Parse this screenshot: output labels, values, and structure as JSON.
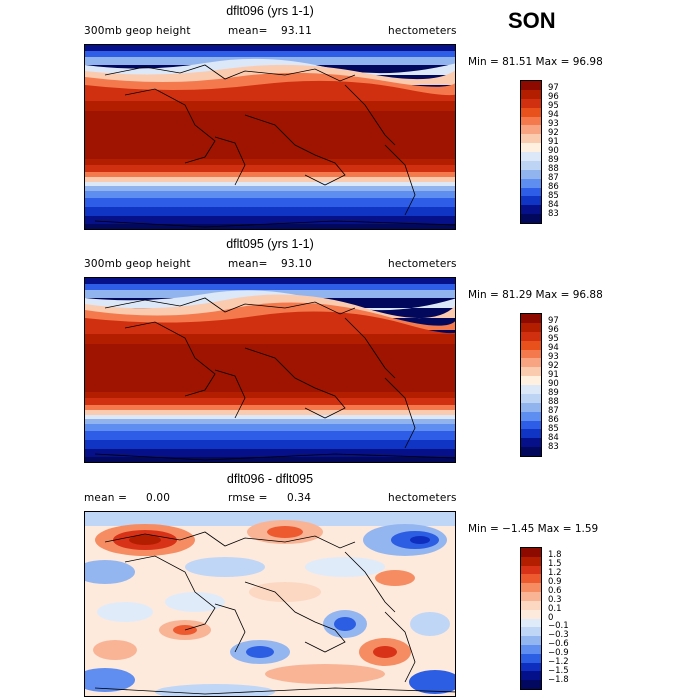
{
  "season": "SON",
  "panels": [
    {
      "title": "dflt096 (yrs 1-1)",
      "field_label": "300mb geop height",
      "mean_label": "mean=",
      "mean_value": "93.11",
      "units": "hectometers",
      "min_label": "Min =",
      "min_value": "81.51",
      "max_label": "Max =",
      "max_value": "96.98",
      "colorbar_ticks": [
        "97",
        "96",
        "95",
        "94",
        "93",
        "92",
        "91",
        "90",
        "89",
        "88",
        "87",
        "86",
        "85",
        "84",
        "83"
      ]
    },
    {
      "title": "dflt095 (yrs 1-1)",
      "field_label": "300mb geop height",
      "mean_label": "mean=",
      "mean_value": "93.10",
      "units": "hectometers",
      "min_label": "Min =",
      "min_value": "81.29",
      "max_label": "Max =",
      "max_value": "96.88",
      "colorbar_ticks": [
        "97",
        "96",
        "95",
        "94",
        "93",
        "92",
        "91",
        "90",
        "89",
        "88",
        "87",
        "86",
        "85",
        "84",
        "83"
      ]
    },
    {
      "title": "dflt096 - dflt095",
      "mean_label": "mean =",
      "mean_value": "0.00",
      "rmse_label": "rmse =",
      "rmse_value": "0.34",
      "units": "hectometers",
      "min_label": "Min =",
      "min_value": "−1.45",
      "max_label": "Max =",
      "max_value": "1.59",
      "colorbar_ticks": [
        "1.8",
        "1.5",
        "1.2",
        "0.9",
        "0.6",
        "0.3",
        "0.1",
        "0",
        "−0.1",
        "−0.3",
        "−0.6",
        "−0.9",
        "−1.2",
        "−1.5",
        "−1.8"
      ]
    }
  ],
  "colors": {
    "abs_scale": [
      "#8c0a00",
      "#b41e00",
      "#d03010",
      "#e8501c",
      "#f47a4e",
      "#f8a482",
      "#fbcbb0",
      "#fff0e0",
      "#dce8f8",
      "#bed4f4",
      "#92b4ee",
      "#5e8ef0",
      "#2e5ee8",
      "#1034c4",
      "#061088",
      "#02085c"
    ],
    "diff_scale": [
      "#8c0a00",
      "#b41e00",
      "#d83218",
      "#ee5a30",
      "#f68c62",
      "#f9b496",
      "#fcd8c2",
      "#fdeadc",
      "#e0ebfa",
      "#c0d6f6",
      "#94b6f0",
      "#5f8ef0",
      "#2c5ee4",
      "#0e2ec0",
      "#04108a",
      "#020760"
    ]
  }
}
